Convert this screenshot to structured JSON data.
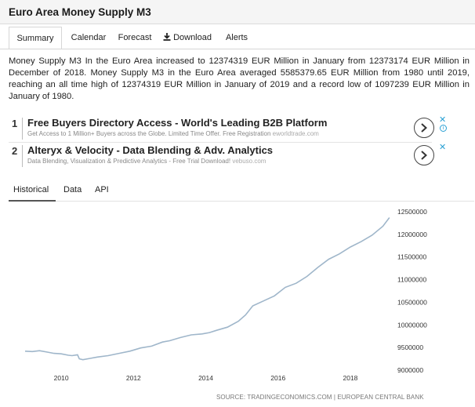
{
  "title": "Euro Area Money Supply M3",
  "tabs": [
    {
      "label": "Summary"
    },
    {
      "label": "Calendar"
    },
    {
      "label": "Forecast"
    },
    {
      "label": "Download"
    },
    {
      "label": "Alerts"
    }
  ],
  "summary": "Money Supply M3 In the Euro Area increased to 12374319 EUR Million in January from 12373174 EUR Million in December of 2018. Money Supply M3 in the Euro Area averaged 5585379.65 EUR Million from 1980 until 2019, reaching an all time high of 12374319 EUR Million in January of 2019 and a record low of 1097239 EUR Million in January of 1980.",
  "ads": [
    {
      "number": "1",
      "headline": "Free Buyers Directory Access - World's Leading B2B Platform",
      "description": "Get Access to 1 Million+ Buyers across the Globe. Limited Time Offer. Free Registration",
      "domain": "eworldtrade.com"
    },
    {
      "number": "2",
      "headline": "Alteryx & Velocity - Data Blending & Adv. Analytics",
      "description": "Data Blending, Visualization & Predictive Analytics - Free Trial Download!",
      "domain": "vebuso.com"
    }
  ],
  "ad_close_glyph": "✕",
  "ad_info_glyph": "i",
  "icons": {
    "download": "download-icon",
    "ad_next": "chevron-right-icon",
    "ad_close": "close-icon",
    "ad_info": "info-icon"
  },
  "subtabs": [
    {
      "label": "Historical"
    },
    {
      "label": "Data"
    },
    {
      "label": "API"
    }
  ],
  "source": "SOURCE: TRADINGECONOMICS.COM | EUROPEAN CENTRAL BANK",
  "colors": {
    "line": "#9fb6ca",
    "accent": "#2aa0d4"
  },
  "chart_data": {
    "type": "line",
    "xlabel": "",
    "ylabel": "",
    "x_ticks": [
      "2010",
      "2012",
      "2014",
      "2016",
      "2018"
    ],
    "y_ticks": [
      "9000000",
      "9500000",
      "10000000",
      "10500000",
      "11000000",
      "11500000",
      "12000000",
      "12500000"
    ],
    "ylim": [
      9000000,
      12500000
    ],
    "xlim": [
      2009.0,
      2019.15
    ],
    "grid": false,
    "series": [
      {
        "values": [
          [
            2009.0,
            9420000
          ],
          [
            2009.2,
            9410000
          ],
          [
            2009.4,
            9430000
          ],
          [
            2009.6,
            9400000
          ],
          [
            2009.8,
            9370000
          ],
          [
            2010.0,
            9360000
          ],
          [
            2010.2,
            9330000
          ],
          [
            2010.3,
            9320000
          ],
          [
            2010.45,
            9340000
          ],
          [
            2010.5,
            9250000
          ],
          [
            2010.6,
            9230000
          ],
          [
            2010.8,
            9260000
          ],
          [
            2011.0,
            9290000
          ],
          [
            2011.3,
            9320000
          ],
          [
            2011.6,
            9370000
          ],
          [
            2011.9,
            9420000
          ],
          [
            2012.2,
            9490000
          ],
          [
            2012.5,
            9530000
          ],
          [
            2012.8,
            9620000
          ],
          [
            2013.0,
            9650000
          ],
          [
            2013.3,
            9720000
          ],
          [
            2013.6,
            9780000
          ],
          [
            2013.9,
            9800000
          ],
          [
            2014.1,
            9830000
          ],
          [
            2014.3,
            9880000
          ],
          [
            2014.6,
            9950000
          ],
          [
            2014.9,
            10080000
          ],
          [
            2015.1,
            10220000
          ],
          [
            2015.3,
            10420000
          ],
          [
            2015.6,
            10530000
          ],
          [
            2015.9,
            10640000
          ],
          [
            2016.2,
            10830000
          ],
          [
            2016.5,
            10920000
          ],
          [
            2016.8,
            11070000
          ],
          [
            2017.1,
            11270000
          ],
          [
            2017.4,
            11450000
          ],
          [
            2017.7,
            11570000
          ],
          [
            2018.0,
            11720000
          ],
          [
            2018.3,
            11840000
          ],
          [
            2018.6,
            11980000
          ],
          [
            2018.9,
            12180000
          ],
          [
            2019.08,
            12370000
          ]
        ]
      }
    ]
  }
}
